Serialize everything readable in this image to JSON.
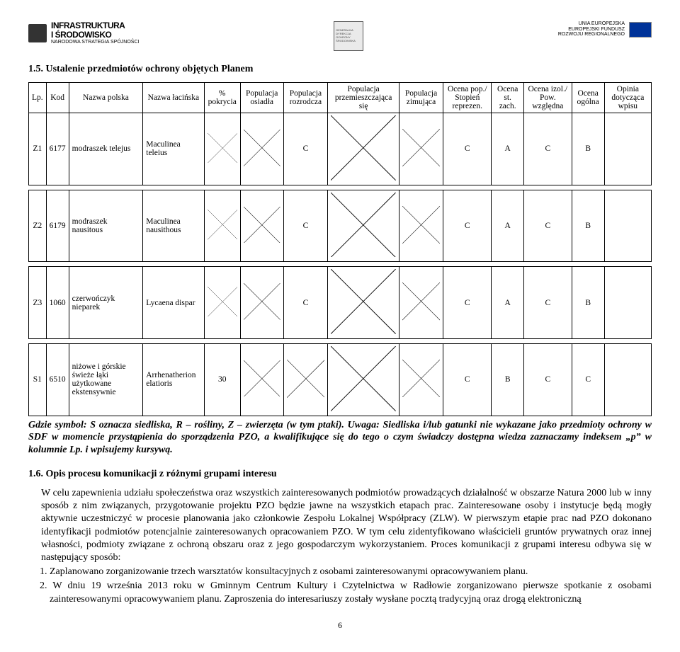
{
  "header": {
    "left": {
      "line1": "INFRASTRUKTURA",
      "line2": "I ŚRODOWISKO",
      "line3": "NARODOWA STRATEGIA SPÓJNOŚCI"
    },
    "center": [
      "GENERALNA",
      "DYREKCJA",
      "OCHRONY",
      "ŚRODOWISKA"
    ],
    "right": {
      "line1": "UNIA EUROPEJSKA",
      "line2": "EUROPEJSKI FUNDUSZ",
      "line3": "ROZWOJU REGIONALNEGO"
    }
  },
  "section15": {
    "title": "1.5. Ustalenie przedmiotów ochrony objętych Planem"
  },
  "table": {
    "headers": {
      "lp": "Lp.",
      "kod": "Kod",
      "nazwa_polska": "Nazwa polska",
      "nazwa_lacinska": "Nazwa łacińska",
      "pokrycia": "% pokrycia",
      "pop_osiadla": "Populacja osiadła",
      "pop_rozrodcza": "Populacja rozrodcza",
      "pop_przem": "Populacja przemieszczająca się",
      "pop_zim": "Populacja zimująca",
      "ocena_pop": "Ocena pop./ Stopień reprezen.",
      "ocena_st": "Ocena st. zach.",
      "ocena_izol": "Ocena izol./ Pow. względna",
      "ocena_ogolna": "Ocena ogólna",
      "opinia": "Opinia dotycząca wpisu"
    },
    "rows": [
      {
        "lp": "Z1",
        "kod": "6177",
        "np": "modraszek telejus",
        "nl": "Maculinea teleius",
        "pok": null,
        "osi": null,
        "roz": "C",
        "prz": null,
        "zim": null,
        "op": "C",
        "st": "A",
        "iz": "C",
        "og": "B",
        "opi": ""
      },
      {
        "lp": "Z2",
        "kod": "6179",
        "np": "modraszek nausitous",
        "nl": "Maculinea nausithous",
        "pok": null,
        "osi": null,
        "roz": "C",
        "prz": null,
        "zim": null,
        "op": "C",
        "st": "A",
        "iz": "C",
        "og": "B",
        "opi": ""
      },
      {
        "lp": "Z3",
        "kod": "1060",
        "np": "czerwończyk nieparek",
        "nl": "Lycaena dispar",
        "pok": null,
        "osi": null,
        "roz": "C",
        "prz": null,
        "zim": null,
        "op": "C",
        "st": "A",
        "iz": "C",
        "og": "B",
        "opi": ""
      },
      {
        "lp": "S1",
        "kod": "6510",
        "np": "niżowe i górskie świeże łąki użytkowane ekstensywnie",
        "nl": "Arrhenatherion elatioris",
        "pok": "30",
        "osi": null,
        "roz": null,
        "prz": null,
        "zim": null,
        "op": "C",
        "st": "B",
        "iz": "C",
        "og": "C",
        "opi": ""
      }
    ]
  },
  "note": "Gdzie symbol: S oznacza siedliska, R – rośliny, Z – zwierzęta (w tym ptaki). Uwaga: Siedliska i/lub gatunki nie wykazane jako przedmioty ochrony w SDF w momencie przystąpienia do sporządzenia PZO, a kwalifikujące się do tego o czym świadczy dostępna wiedza zaznaczamy indeksem „p” w kolumnie Lp. i wpisujemy kursywą.",
  "section16": {
    "title": "1.6. Opis procesu komunikacji z różnymi grupami interesu",
    "para1": "W celu zapewnienia udziału społeczeństwa oraz wszystkich zainteresowanych podmiotów prowadzących działalność w obszarze Natura 2000 lub w inny sposób z nim związanych, przygotowanie projektu PZO będzie jawne na wszystkich etapach prac. Zainteresowane osoby i instytucje będą mogły aktywnie uczestniczyć w procesie planowania jako członkowie Zespołu Lokalnej Współpracy (ZLW). W pierwszym etapie prac nad PZO dokonano identyfikacji podmiotów potencjalnie zainteresowanych opracowaniem PZO. W tym celu zidentyfikowano właścicieli gruntów prywatnych oraz innej własności, podmioty związane z ochroną obszaru oraz z jego gospodarczym wykorzystaniem. Proces komunikacji z grupami interesu odbywa się w następujący sposób:",
    "li1": "1. Zaplanowano zorganizowanie trzech warsztatów konsultacyjnych z osobami zainteresowanymi opracowywaniem planu.",
    "li2": "2. W dniu 19 września 2013 roku w Gminnym Centrum Kultury i Czytelnictwa w Radłowie zorganizowano pierwsze spotkanie z osobami zainteresowanymi opracowywaniem planu. Zaproszenia do interesariuszy zostały wysłane pocztą tradycyjną oraz drogą elektroniczną"
  },
  "pagenum": "6"
}
